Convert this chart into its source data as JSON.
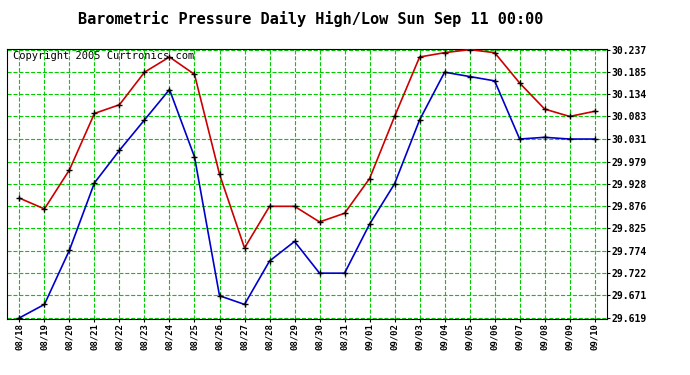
{
  "title": "Barometric Pressure Daily High/Low Sun Sep 11 00:00",
  "copyright": "Copyright 2005 Curtronics.com",
  "x_labels": [
    "08/18",
    "08/19",
    "08/20",
    "08/21",
    "08/22",
    "08/23",
    "08/24",
    "08/25",
    "08/26",
    "08/27",
    "08/28",
    "08/29",
    "08/30",
    "08/31",
    "09/01",
    "09/02",
    "09/03",
    "09/04",
    "09/05",
    "09/06",
    "09/07",
    "09/08",
    "09/09",
    "09/10"
  ],
  "red_data": [
    29.895,
    29.87,
    29.96,
    30.09,
    30.11,
    30.185,
    30.22,
    30.18,
    29.95,
    29.78,
    29.876,
    29.876,
    29.84,
    29.86,
    29.94,
    30.083,
    30.22,
    30.23,
    30.237,
    30.23,
    30.16,
    30.1,
    30.083,
    30.095
  ],
  "blue_data": [
    29.619,
    29.65,
    29.775,
    29.93,
    30.005,
    30.075,
    30.145,
    29.99,
    29.67,
    29.65,
    29.75,
    29.795,
    29.722,
    29.722,
    29.835,
    29.928,
    30.075,
    30.185,
    30.175,
    30.165,
    30.031,
    30.035,
    30.031,
    30.031
  ],
  "ylim_min": 29.619,
  "ylim_max": 30.237,
  "yticks": [
    29.619,
    29.671,
    29.722,
    29.774,
    29.825,
    29.876,
    29.928,
    29.979,
    30.031,
    30.083,
    30.134,
    30.185,
    30.237
  ],
  "bg_color": "#ffffff",
  "plot_bg_color": "#ffffff",
  "grid_color": "#00cc00",
  "red_color": "#cc0000",
  "blue_color": "#0000cc",
  "marker_color": "#000000",
  "title_fontsize": 11,
  "copyright_fontsize": 7.5
}
